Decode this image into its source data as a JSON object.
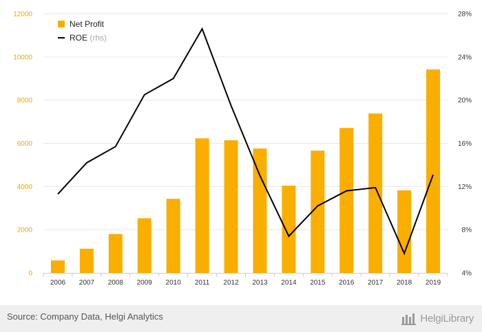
{
  "chart_data": {
    "type": "bar",
    "categories": [
      "2006",
      "2007",
      "2008",
      "2009",
      "2010",
      "2011",
      "2012",
      "2013",
      "2014",
      "2015",
      "2016",
      "2017",
      "2018",
      "2019"
    ],
    "series": [
      {
        "name": "Net Profit",
        "type": "bar",
        "axis": "left",
        "color": "#f9ae00",
        "values": [
          580,
          1120,
          1800,
          2530,
          3430,
          6230,
          6140,
          5760,
          4040,
          5660,
          6710,
          7380,
          3820,
          9420
        ]
      },
      {
        "name": "ROE",
        "name_suffix": "(rhs)",
        "type": "line",
        "axis": "right",
        "color": "#000000",
        "values": [
          11.3,
          14.2,
          15.7,
          20.5,
          22.0,
          26.6,
          19.5,
          13.0,
          7.4,
          10.2,
          11.6,
          11.9,
          5.8,
          13.1
        ]
      }
    ],
    "yleft": {
      "lim": [
        0,
        12000
      ],
      "ticks": [
        "0",
        "2000",
        "4000",
        "6000",
        "8000",
        "10000",
        "12000"
      ]
    },
    "yright": {
      "lim": [
        4,
        28
      ],
      "ticks": [
        "4%",
        "8%",
        "12%",
        "16%",
        "20%",
        "24%",
        "28%"
      ]
    },
    "grid": true,
    "legend": "top-left"
  },
  "footer": {
    "source": "Source: Company Data, Helgi Analytics",
    "brand": "HelgiLibrary"
  }
}
